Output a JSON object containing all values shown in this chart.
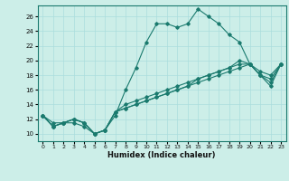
{
  "title": "",
  "xlabel": "Humidex (Indice chaleur)",
  "bg_color": "#cceee8",
  "line_color": "#1a7a6e",
  "grid_color": "#aadddd",
  "xlim": [
    -0.5,
    23.5
  ],
  "ylim": [
    9.0,
    27.5
  ],
  "xticks": [
    0,
    1,
    2,
    3,
    4,
    5,
    6,
    7,
    8,
    9,
    10,
    11,
    12,
    13,
    14,
    15,
    16,
    17,
    18,
    19,
    20,
    21,
    22,
    23
  ],
  "yticks": [
    10,
    12,
    14,
    16,
    18,
    20,
    22,
    24,
    26
  ],
  "series": [
    [
      12.5,
      11.5,
      11.5,
      11.5,
      11.0,
      10.0,
      10.5,
      12.5,
      16.0,
      19.0,
      22.5,
      25.0,
      25.0,
      24.5,
      25.0,
      27.0,
      26.0,
      25.0,
      23.5,
      22.5,
      19.5,
      18.0,
      16.5,
      19.5
    ],
    [
      12.5,
      11.0,
      11.5,
      12.0,
      11.5,
      10.0,
      10.5,
      13.0,
      14.0,
      14.5,
      15.0,
      15.5,
      16.0,
      16.5,
      17.0,
      17.5,
      18.0,
      18.5,
      19.0,
      19.5,
      19.5,
      18.0,
      17.5,
      19.5
    ],
    [
      12.5,
      11.0,
      11.5,
      12.0,
      11.5,
      10.0,
      10.5,
      13.0,
      13.5,
      14.0,
      14.5,
      15.0,
      15.5,
      16.0,
      16.5,
      17.0,
      17.5,
      18.0,
      18.5,
      19.0,
      19.5,
      18.5,
      18.0,
      19.5
    ],
    [
      12.5,
      11.0,
      11.5,
      12.0,
      11.5,
      10.0,
      10.5,
      13.0,
      13.5,
      14.0,
      14.5,
      15.0,
      15.5,
      16.0,
      16.5,
      17.5,
      18.0,
      18.5,
      19.0,
      20.0,
      19.5,
      18.0,
      17.0,
      19.5
    ]
  ]
}
